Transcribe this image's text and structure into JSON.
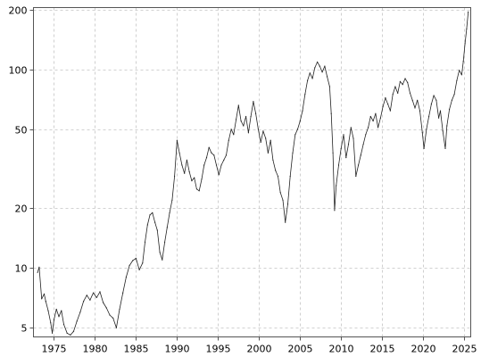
{
  "chart_data": {
    "type": "line",
    "title": "",
    "xlabel": "",
    "ylabel": "",
    "y_scale": "log",
    "grid": true,
    "xlim": [
      1972.5,
      2025.8
    ],
    "ylim": [
      4.5,
      205
    ],
    "x_ticks": [
      1975,
      1980,
      1985,
      1990,
      1995,
      2000,
      2005,
      2010,
      2015,
      2020,
      2025
    ],
    "x_tick_labels": [
      "1975",
      "1980",
      "1985",
      "1990",
      "1995",
      "2000",
      "2005",
      "2010",
      "2015",
      "2020",
      "2025"
    ],
    "y_ticks": [
      5,
      10,
      20,
      50,
      100,
      200
    ],
    "y_tick_labels": [
      "5",
      "10",
      "20",
      "50",
      "100",
      "200"
    ],
    "series": [
      {
        "color": "#222222",
        "points": [
          [
            1973.0,
            9.5
          ],
          [
            1973.2,
            10.1
          ],
          [
            1973.5,
            7.0
          ],
          [
            1973.8,
            7.4
          ],
          [
            1974.0,
            6.8
          ],
          [
            1974.3,
            6.1
          ],
          [
            1974.6,
            5.3
          ],
          [
            1974.8,
            4.7
          ],
          [
            1975.0,
            5.5
          ],
          [
            1975.3,
            6.2
          ],
          [
            1975.6,
            5.7
          ],
          [
            1975.9,
            6.1
          ],
          [
            1976.2,
            5.2
          ],
          [
            1976.6,
            4.7
          ],
          [
            1977.0,
            4.6
          ],
          [
            1977.4,
            4.8
          ],
          [
            1977.8,
            5.4
          ],
          [
            1978.2,
            6.0
          ],
          [
            1978.6,
            6.8
          ],
          [
            1979.0,
            7.3
          ],
          [
            1979.4,
            6.9
          ],
          [
            1979.8,
            7.5
          ],
          [
            1980.2,
            7.1
          ],
          [
            1980.6,
            7.6
          ],
          [
            1981.0,
            6.7
          ],
          [
            1981.4,
            6.3
          ],
          [
            1981.8,
            5.8
          ],
          [
            1982.2,
            5.6
          ],
          [
            1982.6,
            5.0
          ],
          [
            1983.0,
            6.2
          ],
          [
            1983.4,
            7.5
          ],
          [
            1983.8,
            9.0
          ],
          [
            1984.2,
            10.3
          ],
          [
            1984.6,
            10.9
          ],
          [
            1985.0,
            11.2
          ],
          [
            1985.4,
            9.8
          ],
          [
            1985.8,
            10.6
          ],
          [
            1986.1,
            13.5
          ],
          [
            1986.4,
            16.5
          ],
          [
            1986.7,
            18.5
          ],
          [
            1987.0,
            19.0
          ],
          [
            1987.3,
            17.0
          ],
          [
            1987.6,
            15.5
          ],
          [
            1987.9,
            12.0
          ],
          [
            1988.2,
            11.0
          ],
          [
            1988.5,
            13.5
          ],
          [
            1988.8,
            16.0
          ],
          [
            1989.1,
            19.0
          ],
          [
            1989.4,
            22.0
          ],
          [
            1989.7,
            29.0
          ],
          [
            1990.0,
            44.0
          ],
          [
            1990.3,
            38.0
          ],
          [
            1990.6,
            33.0
          ],
          [
            1990.9,
            30.0
          ],
          [
            1991.2,
            35.0
          ],
          [
            1991.5,
            30.5
          ],
          [
            1991.8,
            27.5
          ],
          [
            1992.1,
            28.5
          ],
          [
            1992.4,
            25.0
          ],
          [
            1992.7,
            24.5
          ],
          [
            1993.0,
            28.0
          ],
          [
            1993.3,
            33.0
          ],
          [
            1993.6,
            36.0
          ],
          [
            1993.9,
            40.5
          ],
          [
            1994.2,
            38.0
          ],
          [
            1994.5,
            37.0
          ],
          [
            1994.8,
            33.0
          ],
          [
            1995.1,
            29.5
          ],
          [
            1995.4,
            33.0
          ],
          [
            1995.7,
            35.0
          ],
          [
            1996.0,
            37.0
          ],
          [
            1996.3,
            44.0
          ],
          [
            1996.6,
            50.0
          ],
          [
            1996.9,
            47.0
          ],
          [
            1997.2,
            56.0
          ],
          [
            1997.5,
            66.0
          ],
          [
            1997.8,
            55.0
          ],
          [
            1998.1,
            52.0
          ],
          [
            1998.4,
            58.0
          ],
          [
            1998.7,
            48.0
          ],
          [
            1999.0,
            58.0
          ],
          [
            1999.3,
            69.0
          ],
          [
            1999.6,
            60.0
          ],
          [
            1999.9,
            50.0
          ],
          [
            2000.2,
            43.0
          ],
          [
            2000.5,
            49.0
          ],
          [
            2000.8,
            45.0
          ],
          [
            2001.1,
            38.0
          ],
          [
            2001.4,
            44.0
          ],
          [
            2001.7,
            35.0
          ],
          [
            2002.0,
            31.0
          ],
          [
            2002.3,
            29.0
          ],
          [
            2002.6,
            24.0
          ],
          [
            2002.9,
            22.0
          ],
          [
            2003.2,
            17.0
          ],
          [
            2003.5,
            21.0
          ],
          [
            2003.8,
            29.0
          ],
          [
            2004.1,
            38.0
          ],
          [
            2004.4,
            47.0
          ],
          [
            2004.7,
            50.0
          ],
          [
            2005.0,
            55.0
          ],
          [
            2005.3,
            62.0
          ],
          [
            2005.6,
            75.0
          ],
          [
            2005.9,
            88.0
          ],
          [
            2006.2,
            96.0
          ],
          [
            2006.5,
            90.0
          ],
          [
            2006.8,
            102.0
          ],
          [
            2007.1,
            109.0
          ],
          [
            2007.4,
            104.0
          ],
          [
            2007.7,
            97.0
          ],
          [
            2008.0,
            104.0
          ],
          [
            2008.3,
            92.0
          ],
          [
            2008.6,
            82.0
          ],
          [
            2008.8,
            60.0
          ],
          [
            2009.0,
            38.0
          ],
          [
            2009.2,
            19.5
          ],
          [
            2009.4,
            26.0
          ],
          [
            2009.7,
            33.0
          ],
          [
            2010.0,
            40.0
          ],
          [
            2010.3,
            47.0
          ],
          [
            2010.6,
            36.0
          ],
          [
            2010.9,
            42.0
          ],
          [
            2011.2,
            51.0
          ],
          [
            2011.5,
            45.0
          ],
          [
            2011.8,
            29.0
          ],
          [
            2012.1,
            33.0
          ],
          [
            2012.4,
            37.0
          ],
          [
            2012.7,
            42.0
          ],
          [
            2013.0,
            47.0
          ],
          [
            2013.3,
            51.0
          ],
          [
            2013.6,
            58.0
          ],
          [
            2013.9,
            55.0
          ],
          [
            2014.2,
            60.0
          ],
          [
            2014.5,
            51.0
          ],
          [
            2014.8,
            57.0
          ],
          [
            2015.1,
            65.0
          ],
          [
            2015.4,
            72.0
          ],
          [
            2015.7,
            67.0
          ],
          [
            2016.0,
            62.0
          ],
          [
            2016.3,
            75.0
          ],
          [
            2016.6,
            82.0
          ],
          [
            2016.9,
            76.0
          ],
          [
            2017.2,
            87.0
          ],
          [
            2017.5,
            84.0
          ],
          [
            2017.8,
            90.0
          ],
          [
            2018.1,
            86.0
          ],
          [
            2018.4,
            76.0
          ],
          [
            2018.7,
            70.0
          ],
          [
            2019.0,
            64.0
          ],
          [
            2019.3,
            70.0
          ],
          [
            2019.6,
            62.0
          ],
          [
            2019.9,
            48.0
          ],
          [
            2020.1,
            40.0
          ],
          [
            2020.4,
            50.0
          ],
          [
            2020.7,
            58.0
          ],
          [
            2021.0,
            67.0
          ],
          [
            2021.3,
            74.0
          ],
          [
            2021.6,
            70.0
          ],
          [
            2021.9,
            57.0
          ],
          [
            2022.1,
            62.0
          ],
          [
            2022.4,
            49.0
          ],
          [
            2022.7,
            40.0
          ],
          [
            2022.9,
            52.0
          ],
          [
            2023.2,
            63.0
          ],
          [
            2023.5,
            70.0
          ],
          [
            2023.8,
            75.0
          ],
          [
            2024.1,
            88.0
          ],
          [
            2024.4,
            99.0
          ],
          [
            2024.7,
            94.0
          ],
          [
            2024.9,
            110.0
          ],
          [
            2025.1,
            135.0
          ],
          [
            2025.3,
            160.0
          ],
          [
            2025.5,
            195.0
          ]
        ]
      }
    ]
  }
}
